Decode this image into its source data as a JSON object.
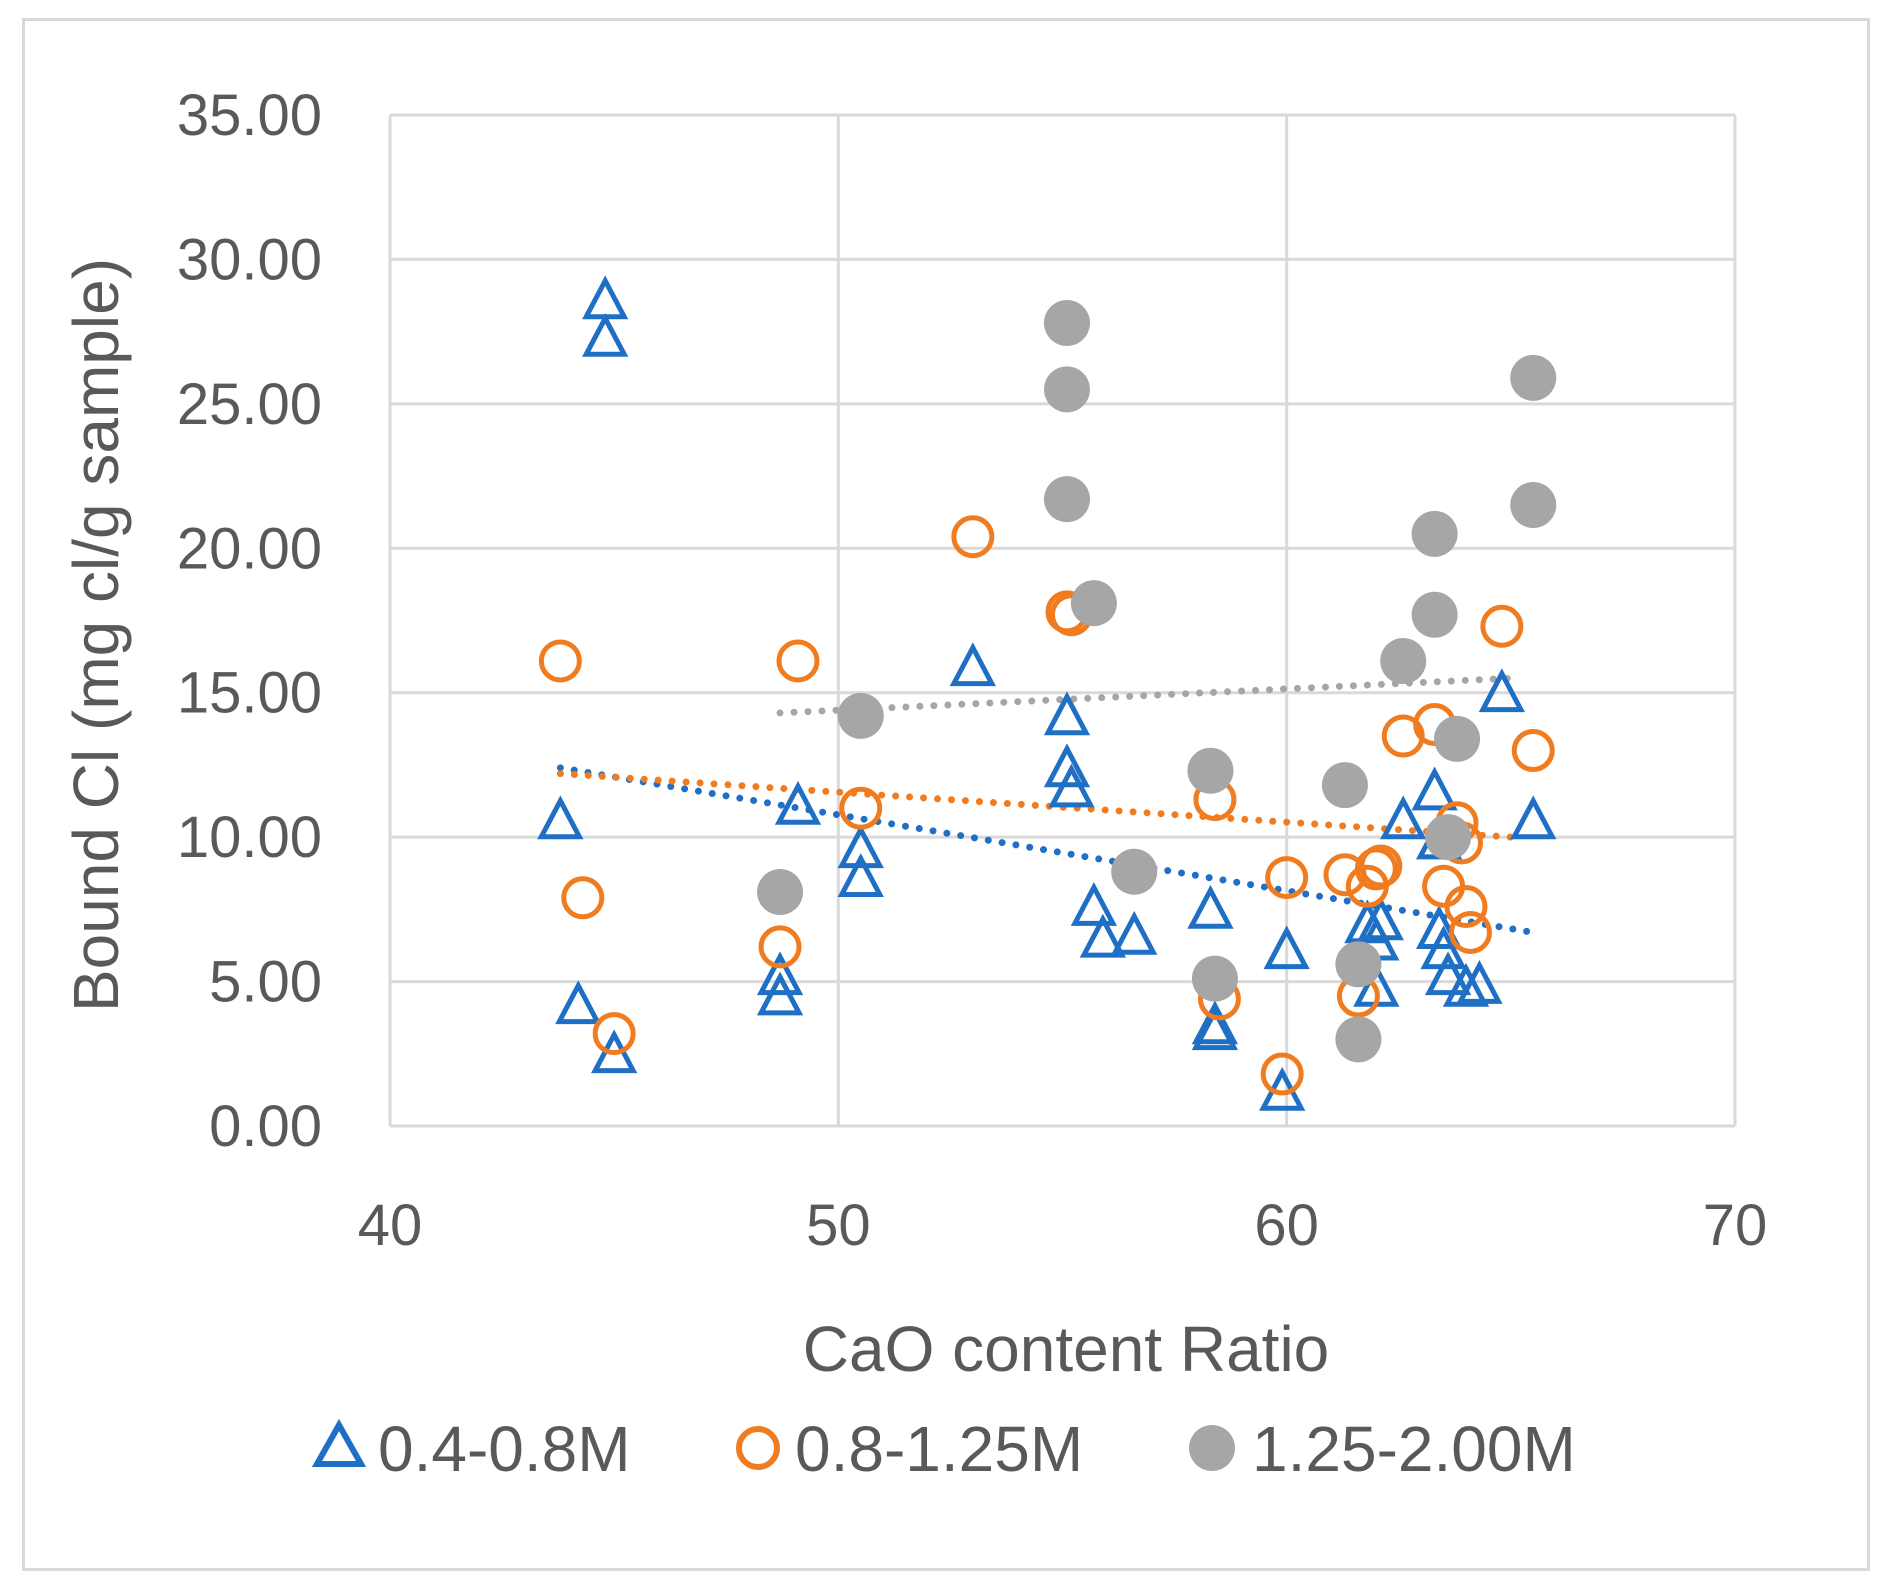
{
  "chart_data": {
    "type": "scatter",
    "title": "",
    "xlabel": "CaO content Ratio",
    "ylabel": "Bound Cl (mg cl/g sample)",
    "xlim": [
      40,
      70
    ],
    "ylim": [
      0,
      35
    ],
    "x_ticks": [
      40,
      50,
      60,
      70
    ],
    "x_tick_labels": [
      "40",
      "50",
      "60",
      "70"
    ],
    "y_ticks": [
      0,
      5,
      10,
      15,
      20,
      25,
      30,
      35
    ],
    "y_tick_labels": [
      "0.00",
      "5.00",
      "10.00",
      "15.00",
      "20.00",
      "25.00",
      "30.00",
      "35.00"
    ],
    "grid": true,
    "legend_position": "bottom",
    "series": [
      {
        "name": "0.4-0.8M",
        "marker": "triangle-open",
        "color": "#1f6fc5",
        "x": [
          43.8,
          44.2,
          44.8,
          44.8,
          45.0,
          48.7,
          48.7,
          49.1,
          50.5,
          50.5,
          53.0,
          55.1,
          55.1,
          55.2,
          55.7,
          55.9,
          56.6,
          58.3,
          58.4,
          58.4,
          59.9,
          60.0,
          61.8,
          62.0,
          62.0,
          62.1,
          62.6,
          63.3,
          63.4,
          63.4,
          63.5,
          63.6,
          64.0,
          64.3,
          64.8,
          65.5
        ],
        "y": [
          10.5,
          4.1,
          28.5,
          27.2,
          2.4,
          5.1,
          4.4,
          11.0,
          9.5,
          8.5,
          15.8,
          14.1,
          12.3,
          11.6,
          7.5,
          6.4,
          6.5,
          7.4,
          3.4,
          3.2,
          1.1,
          6.0,
          6.9,
          6.3,
          4.7,
          7.0,
          10.5,
          11.5,
          9.8,
          6.7,
          6.0,
          5.1,
          4.7,
          4.8,
          14.9,
          10.5
        ]
      },
      {
        "name": "0.8-1.25M",
        "marker": "circle-open",
        "color": "#f07c1f",
        "x": [
          43.8,
          44.3,
          45.0,
          48.7,
          49.1,
          50.5,
          53.0,
          55.1,
          55.2,
          58.4,
          58.5,
          59.9,
          60.0,
          61.3,
          61.6,
          61.8,
          62.0,
          62.1,
          62.6,
          63.3,
          63.5,
          63.8,
          63.9,
          64.0,
          64.1,
          64.8,
          65.5
        ],
        "y": [
          16.1,
          7.9,
          3.2,
          6.2,
          16.1,
          11.0,
          20.4,
          17.8,
          17.7,
          11.3,
          4.4,
          1.8,
          8.6,
          8.7,
          4.5,
          8.3,
          8.9,
          9.0,
          13.5,
          13.9,
          8.3,
          10.5,
          9.8,
          7.6,
          6.7,
          17.3,
          13.0
        ]
      },
      {
        "name": "1.25-2.00M",
        "marker": "circle-filled",
        "color": "#a6a6a6",
        "x": [
          48.7,
          50.5,
          55.1,
          55.1,
          55.1,
          55.7,
          56.6,
          58.3,
          58.4,
          61.3,
          61.6,
          61.6,
          62.6,
          63.3,
          63.3,
          63.6,
          63.8,
          65.5,
          65.5
        ],
        "y": [
          8.1,
          14.2,
          27.8,
          25.5,
          21.7,
          18.1,
          8.8,
          12.3,
          5.1,
          11.8,
          5.6,
          3.0,
          16.1,
          20.5,
          17.7,
          10.0,
          13.4,
          25.9,
          21.5
        ]
      }
    ],
    "trendlines": [
      {
        "series": "0.4-0.8M",
        "type": "linear",
        "style": "dotted",
        "color": "#1f6fc5",
        "x": [
          43.8,
          65.5
        ],
        "y": [
          12.4,
          6.7
        ]
      },
      {
        "series": "0.8-1.25M",
        "type": "linear",
        "style": "dotted",
        "color": "#f07c1f",
        "x": [
          43.8,
          65.0
        ],
        "y": [
          12.2,
          10.0
        ]
      },
      {
        "series": "1.25-2.00M",
        "type": "linear",
        "style": "dotted",
        "color": "#a6a6a6",
        "x": [
          48.7,
          65.0
        ],
        "y": [
          14.3,
          15.5
        ]
      }
    ]
  }
}
